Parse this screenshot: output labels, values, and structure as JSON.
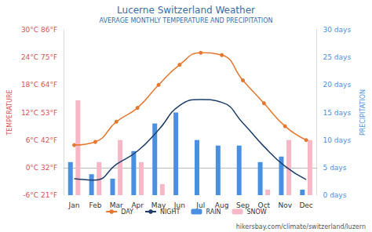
{
  "chart_data": {
    "type": "line",
    "title": "Lucerne Switzerland Weather",
    "subtitle": "AVERAGE MONTHLY TEMPERATURE AND PRECIPITATION",
    "y_label": "TEMPERATURE",
    "y2_label": "PRECIPITATION",
    "annotations": [
      "hikersbay.com/climate/switzerland/luzern"
    ],
    "categories": [
      "Jan",
      "Feb",
      "Mar",
      "Apr",
      "May",
      "Jun",
      "Jul",
      "Aug",
      "Sep",
      "Oct",
      "Nov",
      "Dec"
    ],
    "ylim": [
      -6,
      30
    ],
    "yticks": [
      {
        "value": -6,
        "label": "-6°C 21°F"
      },
      {
        "value": 0,
        "label": "0°C 32°F"
      },
      {
        "value": 6,
        "label": "6°C 42°F"
      },
      {
        "value": 12,
        "label": "12°C 53°F"
      },
      {
        "value": 18,
        "label": "18°C 64°F"
      },
      {
        "value": 24,
        "label": "24°C 75°F"
      },
      {
        "value": 30,
        "label": "30°C 86°F"
      }
    ],
    "y2lim": [
      0,
      30
    ],
    "y2ticks": [
      {
        "value": 0,
        "label": "0 days"
      },
      {
        "value": 5,
        "label": "5 days"
      },
      {
        "value": 10,
        "label": "10 days"
      },
      {
        "value": 15,
        "label": "15 days"
      },
      {
        "value": 20,
        "label": "20 days"
      },
      {
        "value": 25,
        "label": "25 days"
      },
      {
        "value": 30,
        "label": "30 days"
      }
    ],
    "grid": false,
    "legend": "bottom",
    "series": [
      {
        "name": "DAY",
        "type": "line",
        "color": "#e8772e",
        "marker": "circle",
        "values": [
          4.9,
          5.6,
          10,
          13,
          18,
          22.4,
          25,
          24.5,
          19,
          14,
          9,
          6
        ]
      },
      {
        "name": "NIGHT",
        "type": "line",
        "color": "#1c3d6b",
        "marker": "none",
        "values": [
          -2.4,
          -2.7,
          0.7,
          3.6,
          8.2,
          13.5,
          14.8,
          14.2,
          9.7,
          4.6,
          0.3,
          -2.6
        ]
      },
      {
        "name": "RAIN",
        "type": "bar",
        "axis": "y2",
        "color": "#4a90e2",
        "values": [
          6,
          3.8,
          3,
          8,
          13,
          15,
          10,
          9,
          9,
          6,
          7,
          1
        ]
      },
      {
        "name": "SNOW",
        "type": "bar",
        "axis": "y2",
        "color": "#f6b8c6",
        "values": [
          17.2,
          6,
          10,
          6,
          2,
          0,
          0,
          0,
          0,
          1,
          10,
          10
        ]
      }
    ]
  }
}
